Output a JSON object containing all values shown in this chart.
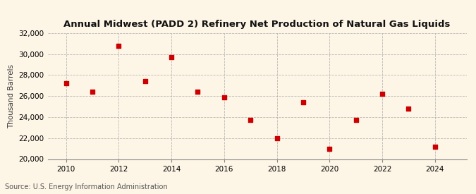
{
  "title": "Annual Midwest (PADD 2) Refinery Net Production of Natural Gas Liquids",
  "ylabel": "Thousand Barrels",
  "source": "Source: U.S. Energy Information Administration",
  "years": [
    2010,
    2011,
    2012,
    2013,
    2014,
    2015,
    2016,
    2017,
    2018,
    2019,
    2020,
    2021,
    2022,
    2023,
    2024
  ],
  "values": [
    27200,
    26400,
    30800,
    27400,
    29700,
    26400,
    25900,
    23700,
    22000,
    25400,
    21000,
    23700,
    26200,
    24800,
    21200
  ],
  "ylim": [
    20000,
    32000
  ],
  "yticks": [
    20000,
    22000,
    24000,
    26000,
    28000,
    30000,
    32000
  ],
  "xticks": [
    2010,
    2012,
    2014,
    2016,
    2018,
    2020,
    2022,
    2024
  ],
  "marker_color": "#cc0000",
  "marker": "s",
  "marker_size": 4,
  "background_color": "#fdf5e6",
  "grid_color": "#aaaaaa",
  "title_fontsize": 9.5,
  "label_fontsize": 7.5,
  "tick_fontsize": 7.5,
  "source_fontsize": 7
}
